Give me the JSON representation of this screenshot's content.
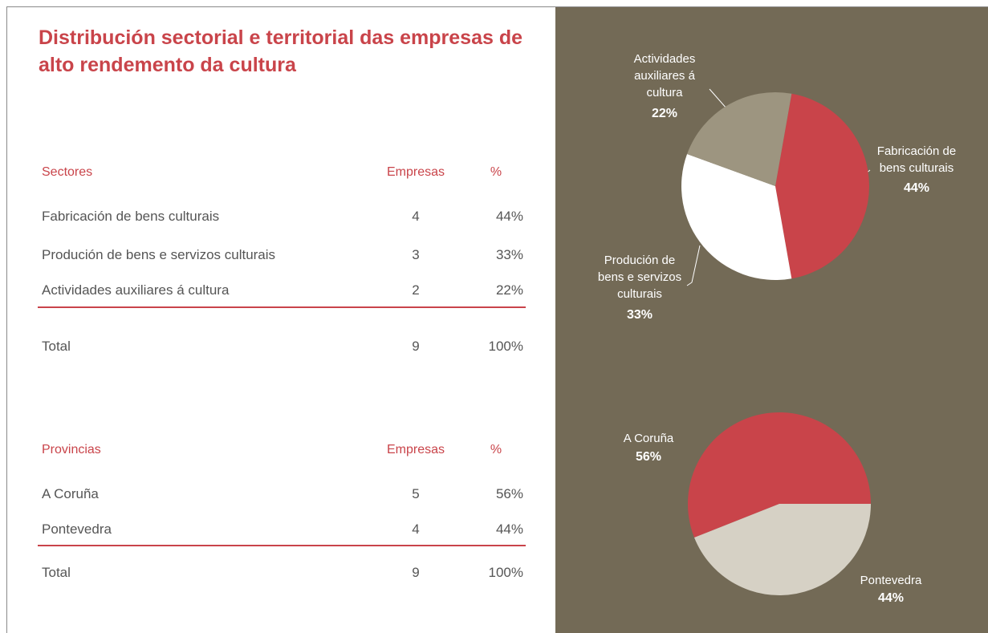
{
  "title": "Distribución sectorial e territorial das empresas de alto rendemento da cultura",
  "tables": [
    {
      "headers": [
        "Sectores",
        "Empresas",
        "%"
      ],
      "rows": [
        [
          "Fabricación de bens culturais",
          "4",
          "44%"
        ],
        [
          "Produción de bens e servizos culturais",
          "3",
          "33%"
        ],
        [
          "Actividades auxiliares á cultura",
          "2",
          "22%"
        ]
      ],
      "total": [
        "Total",
        "9",
        "100%"
      ]
    },
    {
      "headers": [
        "Provincias",
        "Empresas",
        "%"
      ],
      "rows": [
        [
          "A Coruña",
          "5",
          "56%"
        ],
        [
          "Pontevedra",
          "4",
          "44%"
        ]
      ],
      "total": [
        "Total",
        "9",
        "100%"
      ]
    }
  ],
  "chart_data": [
    {
      "type": "pie",
      "categories": [
        "Fabricación de bens culturais",
        "Produción de bens e servizos culturais",
        "Actividades auxiliares á cultura"
      ],
      "values": [
        44,
        33,
        22
      ],
      "value_labels": [
        "44%",
        "33%",
        "22%"
      ],
      "colors": [
        "#c9444a",
        "#ffffff",
        "#9d9580"
      ]
    },
    {
      "type": "pie",
      "categories": [
        "A Coruña",
        "Pontevedra"
      ],
      "values": [
        56,
        44
      ],
      "value_labels": [
        "56%",
        "44%"
      ],
      "colors": [
        "#c9444a",
        "#d6d1c5"
      ]
    }
  ]
}
